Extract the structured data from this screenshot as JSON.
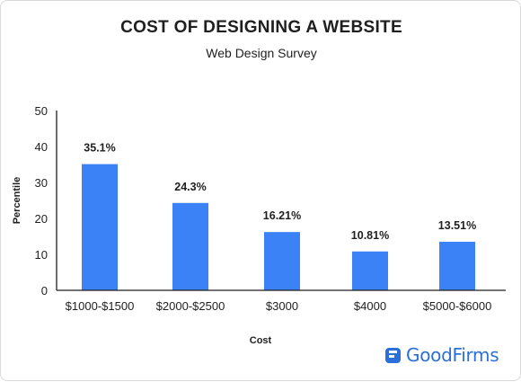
{
  "chart_data": {
    "type": "bar",
    "title": "COST OF DESIGNING A WEBSITE",
    "subtitle": "Web Design Survey",
    "xlabel": "Cost",
    "ylabel": "Percentile",
    "categories": [
      "$1000-$1500",
      "$2000-$2500",
      "$3000",
      "$4000",
      "$5000-$6000"
    ],
    "values": [
      35.1,
      24.3,
      16.21,
      10.81,
      13.51
    ],
    "value_labels": [
      "35.1%",
      "24.3%",
      "16.21%",
      "10.81%",
      "13.51%"
    ],
    "ylim": [
      0,
      50
    ],
    "yticks": [
      0,
      10,
      20,
      30,
      40,
      50
    ],
    "grid": false,
    "bar_color": "#3b82f6"
  },
  "brand": {
    "name": "GoodFirms",
    "color": "#2b6fd8"
  }
}
